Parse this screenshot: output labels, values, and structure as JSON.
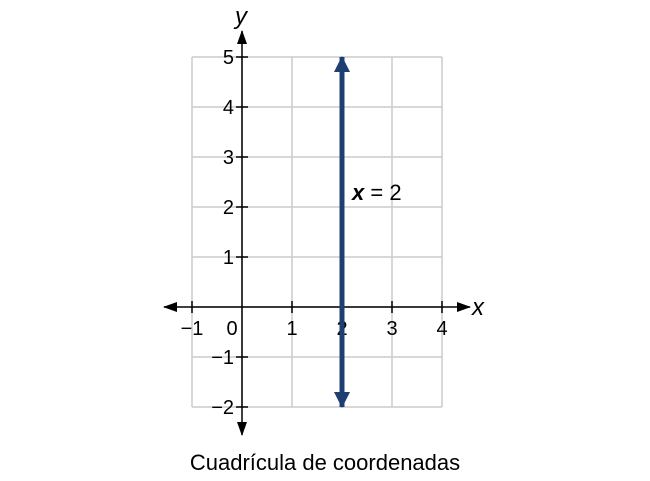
{
  "chart_data": {
    "type": "line",
    "xlim": [
      -1,
      4
    ],
    "ylim": [
      -2,
      5
    ],
    "grid": true,
    "x_ticks": [
      {
        "value": -1,
        "label": "−1"
      },
      {
        "value": 0,
        "label": "0"
      },
      {
        "value": 1,
        "label": "1"
      },
      {
        "value": 2,
        "label": "2"
      },
      {
        "value": 3,
        "label": "3"
      },
      {
        "value": 4,
        "label": "4"
      }
    ],
    "y_ticks": [
      {
        "value": -2,
        "label": "−2"
      },
      {
        "value": -1,
        "label": "−1"
      },
      {
        "value": 1,
        "label": "1"
      },
      {
        "value": 2,
        "label": "2"
      },
      {
        "value": 3,
        "label": "3"
      },
      {
        "value": 4,
        "label": "4"
      },
      {
        "value": 5,
        "label": "5"
      }
    ],
    "xlabel": "x",
    "ylabel": "y",
    "series": [
      {
        "x": [
          2,
          2
        ],
        "y": [
          -2,
          5
        ],
        "color": "#1f3f73",
        "arrows": "both"
      }
    ],
    "annotation": {
      "var": "x",
      "rest": " = 2",
      "x": 2.2,
      "y": 2.3
    },
    "caption": "Cuadrícula de coordenadas"
  }
}
